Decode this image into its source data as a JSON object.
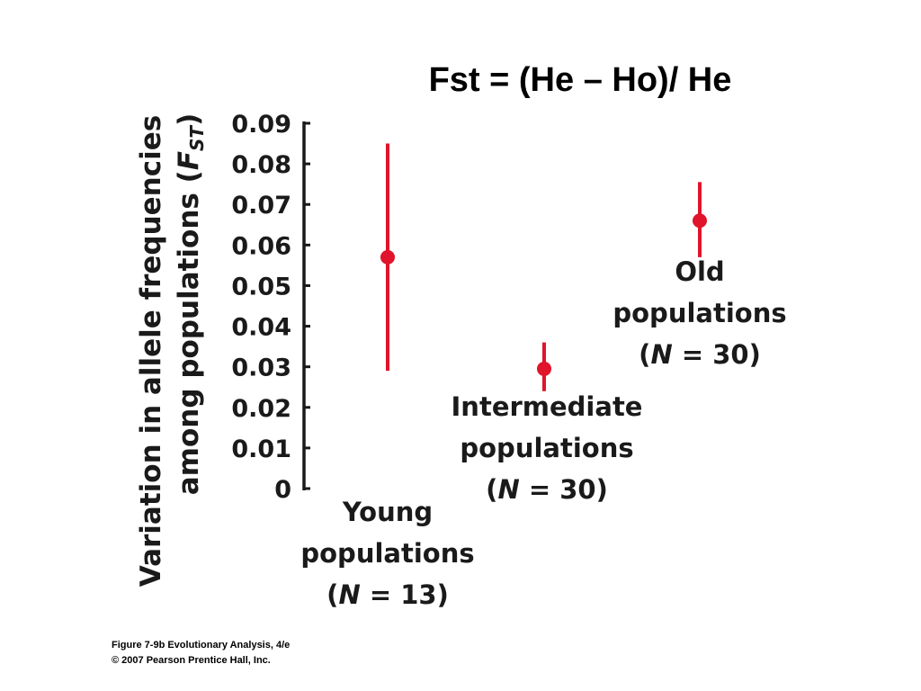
{
  "slide": {
    "title": "Fst = (He – Ho)/ He",
    "credit_line1": "Figure 7-9b  Evolutionary Analysis, 4/e",
    "credit_line2": "© 2007 Pearson Prentice Hall, Inc."
  },
  "chart_data": {
    "type": "scatter",
    "title": "",
    "ylabel_line1": "Variation in allele frequencies",
    "ylabel_line2_prefix": "among populations (",
    "ylabel_symbol": "F",
    "ylabel_subscript": "ST",
    "ylabel_line2_suffix": ")",
    "ylim": [
      0,
      0.09
    ],
    "yticks": [
      "0.09",
      "0.08",
      "0.07",
      "0.06",
      "0.05",
      "0.04",
      "0.03",
      "0.02",
      "0.01",
      "0"
    ],
    "ytick_values": [
      0.09,
      0.08,
      0.07,
      0.06,
      0.05,
      0.04,
      0.03,
      0.02,
      0.01,
      0
    ],
    "grid": false,
    "categories": [
      {
        "name": "Young",
        "line1": "Young",
        "line2": "populations",
        "line3_open": "(",
        "line3_n": "N",
        "line3_rest": " = 13)",
        "value": 0.057,
        "error_low": 0.029,
        "error_high": 0.085
      },
      {
        "name": "Intermediate",
        "line1": "Intermediate",
        "line2": "populations",
        "line3_open": "(",
        "line3_n": "N",
        "line3_rest": " = 30)",
        "value": 0.0295,
        "error_low": 0.024,
        "error_high": 0.036
      },
      {
        "name": "Old",
        "line1": "Old",
        "line2": "populations",
        "line3_open": "(",
        "line3_n": "N",
        "line3_rest": " = 30)",
        "value": 0.066,
        "error_low": 0.057,
        "error_high": 0.0755
      }
    ],
    "marker_color": "#e0142b",
    "axis_color": "#1a1a1a"
  }
}
